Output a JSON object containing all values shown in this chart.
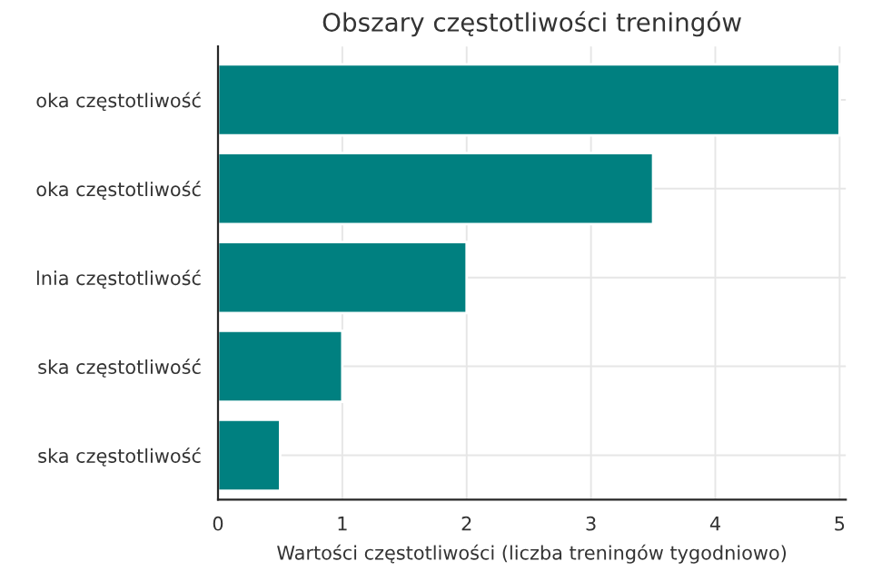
{
  "chart_data": {
    "type": "bar",
    "orientation": "horizontal",
    "title": "Obszary częstotliwości treningów",
    "xlabel": "Wartości częstotliwości (liczba treningów tygodniowo)",
    "categories": [
      "oka częstotliwość",
      "oka częstotliwość",
      "lnia częstotliwość",
      "ska częstotliwość",
      "ska częstotliwość"
    ],
    "values": [
      5,
      3.5,
      2,
      1,
      0.5
    ],
    "color": "#008080",
    "xlim": [
      0,
      5.05
    ],
    "xticks": [
      0,
      1,
      2,
      3,
      4,
      5
    ],
    "grid": true
  }
}
